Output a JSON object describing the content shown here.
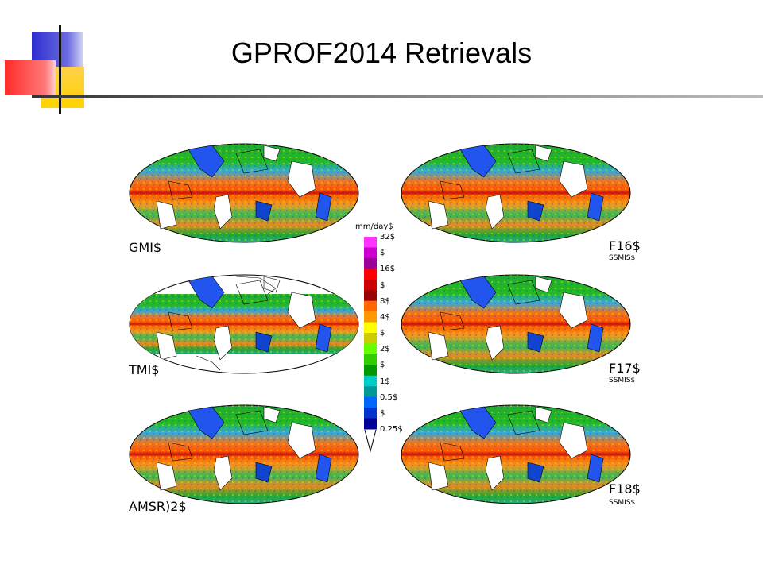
{
  "slide": {
    "title": "GPROF2014 Retrievals"
  },
  "panels": {
    "left": [
      {
        "label": "GMI$",
        "sublabel": ""
      },
      {
        "label": "TMI$",
        "sublabel": ""
      },
      {
        "label": "AMSR)2$",
        "sublabel": ""
      }
    ],
    "right": [
      {
        "label": "F16$",
        "sublabel": "SSMIS$"
      },
      {
        "label": "F17$",
        "sublabel": "SSMIS$"
      },
      {
        "label": "F18$",
        "sublabel": "SSMIS$"
      }
    ]
  },
  "colorbar": {
    "unit": "mm/day$",
    "ticks": [
      "32$",
      "$",
      "16$",
      "$",
      "8$",
      "4$",
      "$",
      "2$",
      "$",
      "1$",
      "0.5$",
      "$",
      "0.25$"
    ],
    "colors": [
      "#ff33ff",
      "#cc00cc",
      "#990099",
      "#ff0000",
      "#cc0000",
      "#990000",
      "#ff6600",
      "#ff9900",
      "#ffff00",
      "#cccc00",
      "#66ff00",
      "#33cc00",
      "#009900",
      "#00cccc",
      "#009999",
      "#0066ff",
      "#0033cc",
      "#000099"
    ]
  },
  "colors": {
    "deco_blue": "#3333cc",
    "deco_red": "#ff3333",
    "deco_yellow": "#ffcc00",
    "rule": "#555555"
  }
}
